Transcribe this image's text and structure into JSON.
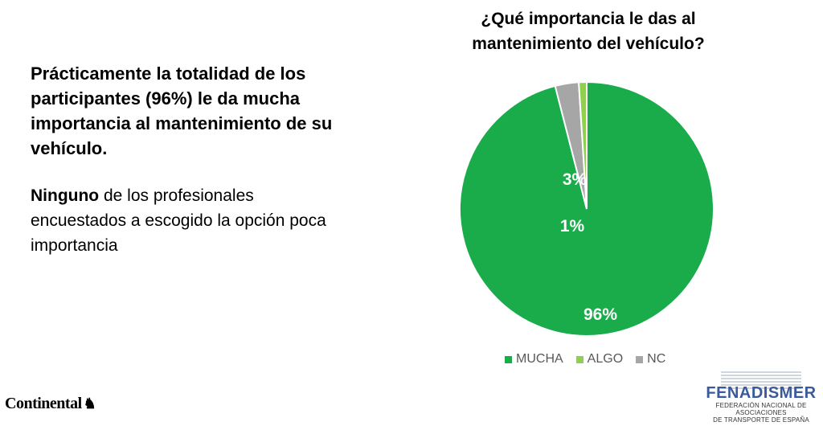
{
  "left_text": {
    "para1": "Prácticamente la totalidad de los participantes (96%) le da mucha importancia al mantenimiento de su vehículo.",
    "para2_bold": "Ninguno",
    "para2_rest": " de los profesionales encuestados a escogido la opción poca importancia"
  },
  "chart_data": {
    "type": "pie",
    "title": "¿Qué importancia le das al mantenimiento del vehículo?",
    "categories": [
      "MUCHA",
      "ALGO",
      "NC"
    ],
    "values": [
      96,
      1,
      3
    ],
    "data_labels": [
      "96%",
      "1%",
      "3%"
    ],
    "colors": [
      "#1aab4b",
      "#8fd14f",
      "#a6a6a6"
    ],
    "legend_position": "bottom"
  },
  "logos": {
    "continental": "Continental",
    "fenadismer_name": "FENADISMER",
    "fenadismer_sub1": "FEDERACIÓN NACIONAL DE ASOCIACIONES",
    "fenadismer_sub2": "DE TRANSPORTE DE ESPAÑA"
  }
}
